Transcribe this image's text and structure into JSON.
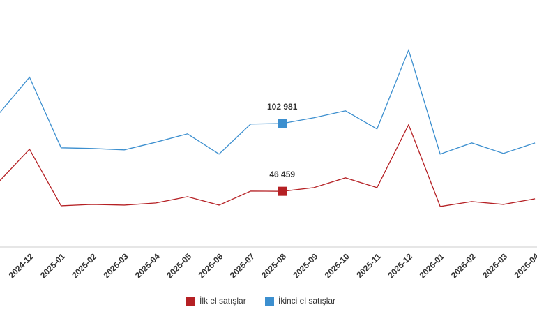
{
  "chart_data": {
    "type": "line",
    "categories": [
      null,
      "2024-12",
      "2025-01",
      "2025-02",
      "2025-03",
      "2025-04",
      "2025-05",
      "2025-06",
      "2025-07",
      "2025-08",
      "2025-09",
      "2025-10",
      "2025-11",
      "2025-12",
      "2026-01",
      "2026-02",
      "2026-03",
      "2026-04"
    ],
    "series": [
      {
        "name": "İlk el satışlar",
        "color": "#b52024",
        "values": [
          53600,
          81580,
          34380,
          35540,
          34960,
          36710,
          41950,
          34960,
          46620,
          46459,
          49530,
          57690,
          49530,
          101970,
          33800,
          37880,
          35540,
          40210
        ],
        "value_labels": [
          null,
          null,
          null,
          null,
          null,
          null,
          null,
          null,
          null,
          "46 459",
          null,
          null,
          null,
          null,
          null,
          null,
          null,
          null
        ]
      },
      {
        "name": "İkinci el satışlar",
        "color": "#3c8fcf",
        "values": [
          110130,
          141600,
          82740,
          82160,
          81000,
          87400,
          94400,
          77500,
          102560,
          102981,
          107800,
          113600,
          98480,
          164300,
          77500,
          86800,
          78080,
          86800
        ],
        "value_labels": [
          null,
          null,
          null,
          null,
          null,
          null,
          null,
          null,
          null,
          "102 981",
          null,
          null,
          null,
          null,
          null,
          null,
          null,
          null
        ]
      }
    ],
    "ylim": [
      0,
      206000
    ],
    "legend": "bottom"
  }
}
